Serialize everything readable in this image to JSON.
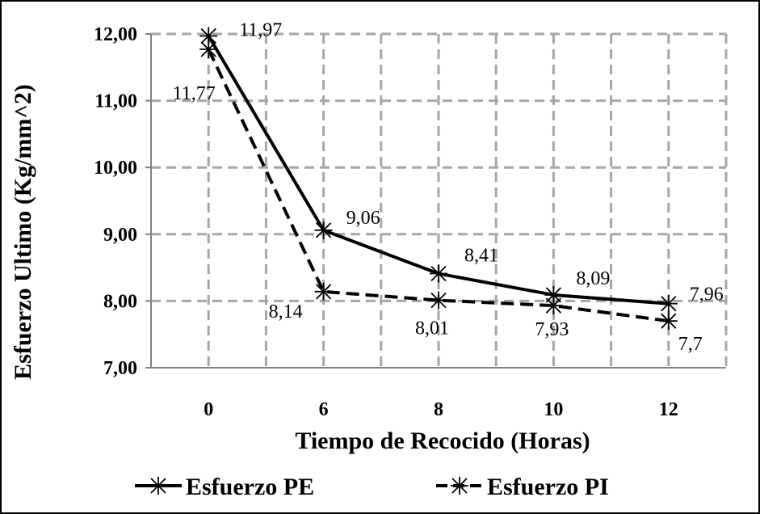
{
  "chart_data": {
    "type": "line",
    "categories": [
      "0",
      "6",
      "8",
      "10",
      "12"
    ],
    "xlabel": "Tiempo de Recocido (Horas)",
    "ylabel": "Esfuerzo Ultimo (Kg/mm^2)",
    "ylim": [
      7,
      12
    ],
    "yticks": [
      "7,00",
      "8,00",
      "9,00",
      "10,00",
      "11,00",
      "12,00"
    ],
    "grid": true,
    "legend_position": "bottom",
    "series": [
      {
        "name": "Esfuerzo PE",
        "values": [
          11.97,
          9.06,
          8.41,
          8.09,
          7.96
        ],
        "labels": [
          "11,97",
          "9,06",
          "8,41",
          "8,09",
          "7,96"
        ],
        "line_style": "solid",
        "marker": "asterisk",
        "color": "#000000"
      },
      {
        "name": "Esfuerzo PI",
        "values": [
          11.77,
          8.14,
          8.01,
          7.93,
          7.7
        ],
        "labels": [
          "11,77",
          "8,14",
          "8,01",
          "7,93",
          "7,7"
        ],
        "line_style": "dashed",
        "marker": "asterisk",
        "color": "#000000"
      }
    ]
  }
}
